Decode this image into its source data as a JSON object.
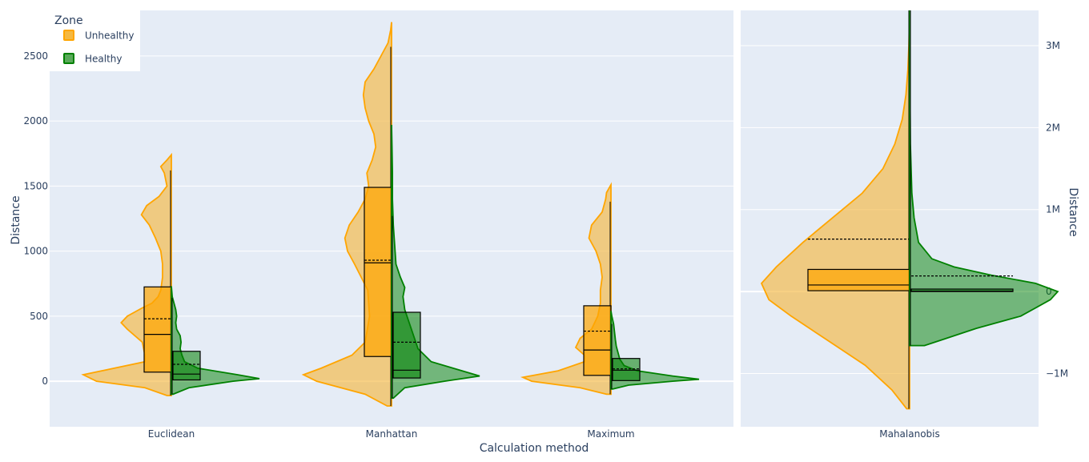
{
  "legend": {
    "title": "Zone",
    "items": [
      {
        "label": "Unhealthy",
        "fill": "#f5b942",
        "stroke": "#ffa500"
      },
      {
        "label": "Healthy",
        "fill": "#5aaa5a",
        "stroke": "#008000"
      }
    ]
  },
  "chart_data": [
    {
      "type": "violin",
      "xlabel": "Calculation method",
      "ylabel": "Distance",
      "ylim": [
        -350,
        2850
      ],
      "yticks": [
        0,
        500,
        1000,
        1500,
        2000,
        2500
      ],
      "ytick_labels": [
        "0",
        "500",
        "1000",
        "1500",
        "2000",
        "2500"
      ],
      "grid": true,
      "categories": [
        "Euclidean",
        "Manhattan",
        "Maximum"
      ],
      "series": [
        {
          "name": "Unhealthy",
          "side": "negative",
          "color": "#ffa500",
          "groups": [
            {
              "category": "Euclidean",
              "min": -110,
              "max": 1740,
              "whisker_high": 1620,
              "q1": 70,
              "median": 360,
              "q3": 725,
              "mean": 480,
              "density": [
                [
                  -110,
                  0.05
                ],
                [
                  -50,
                  0.3
                ],
                [
                  0,
                  0.85
                ],
                [
                  50,
                  1.0
                ],
                [
                  100,
                  0.65
                ],
                [
                  150,
                  0.3
                ],
                [
                  200,
                  0.3
                ],
                [
                  300,
                  0.33
                ],
                [
                  400,
                  0.5
                ],
                [
                  450,
                  0.57
                ],
                [
                  500,
                  0.5
                ],
                [
                  560,
                  0.34
                ],
                [
                  600,
                  0.22
                ],
                [
                  650,
                  0.15
                ],
                [
                  700,
                  0.12
                ],
                [
                  800,
                  0.1
                ],
                [
                  900,
                  0.1
                ],
                [
                  1000,
                  0.12
                ],
                [
                  1100,
                  0.18
                ],
                [
                  1200,
                  0.25
                ],
                [
                  1280,
                  0.34
                ],
                [
                  1350,
                  0.28
                ],
                [
                  1420,
                  0.14
                ],
                [
                  1500,
                  0.05
                ],
                [
                  1600,
                  0.08
                ],
                [
                  1650,
                  0.12
                ],
                [
                  1700,
                  0.05
                ],
                [
                  1740,
                  0
                ]
              ]
            },
            {
              "category": "Manhattan",
              "min": -190,
              "max": 2760,
              "whisker_high": 2570,
              "q1": 190,
              "median": 910,
              "q3": 1490,
              "mean": 930,
              "density": [
                [
                  -190,
                  0.05
                ],
                [
                  -100,
                  0.3
                ],
                [
                  0,
                  0.85
                ],
                [
                  50,
                  1.0
                ],
                [
                  100,
                  0.8
                ],
                [
                  200,
                  0.45
                ],
                [
                  300,
                  0.3
                ],
                [
                  500,
                  0.25
                ],
                [
                  700,
                  0.27
                ],
                [
                  900,
                  0.42
                ],
                [
                  1000,
                  0.5
                ],
                [
                  1100,
                  0.53
                ],
                [
                  1200,
                  0.48
                ],
                [
                  1300,
                  0.38
                ],
                [
                  1400,
                  0.3
                ],
                [
                  1500,
                  0.26
                ],
                [
                  1600,
                  0.28
                ],
                [
                  1700,
                  0.22
                ],
                [
                  1800,
                  0.18
                ],
                [
                  1900,
                  0.2
                ],
                [
                  2000,
                  0.26
                ],
                [
                  2100,
                  0.3
                ],
                [
                  2200,
                  0.32
                ],
                [
                  2300,
                  0.3
                ],
                [
                  2400,
                  0.2
                ],
                [
                  2500,
                  0.12
                ],
                [
                  2600,
                  0.04
                ],
                [
                  2700,
                  0.01
                ],
                [
                  2760,
                  0
                ]
              ]
            },
            {
              "category": "Maximum",
              "min": -100,
              "max": 1510,
              "whisker_high": 1380,
              "q1": 45,
              "median": 240,
              "q3": 580,
              "mean": 385,
              "density": [
                [
                  -100,
                  0.05
                ],
                [
                  -50,
                  0.35
                ],
                [
                  0,
                  0.9
                ],
                [
                  30,
                  1.0
                ],
                [
                  80,
                  0.6
                ],
                [
                  150,
                  0.3
                ],
                [
                  200,
                  0.3
                ],
                [
                  260,
                  0.4
                ],
                [
                  330,
                  0.35
                ],
                [
                  400,
                  0.22
                ],
                [
                  500,
                  0.15
                ],
                [
                  600,
                  0.12
                ],
                [
                  700,
                  0.12
                ],
                [
                  800,
                  0.1
                ],
                [
                  900,
                  0.12
                ],
                [
                  1000,
                  0.17
                ],
                [
                  1100,
                  0.25
                ],
                [
                  1200,
                  0.22
                ],
                [
                  1300,
                  0.1
                ],
                [
                  1400,
                  0.06
                ],
                [
                  1450,
                  0.05
                ],
                [
                  1510,
                  0
                ]
              ]
            }
          ]
        },
        {
          "name": "Healthy",
          "side": "positive",
          "color": "#008000",
          "groups": [
            {
              "category": "Euclidean",
              "min": -100,
              "max": 730,
              "whisker_high": 640,
              "q1": 10,
              "median": 55,
              "q3": 230,
              "mean": 130,
              "density": [
                [
                  -100,
                  0.02
                ],
                [
                  -50,
                  0.2
                ],
                [
                  0,
                  0.7
                ],
                [
                  20,
                  1.0
                ],
                [
                  50,
                  0.75
                ],
                [
                  100,
                  0.3
                ],
                [
                  150,
                  0.15
                ],
                [
                  200,
                  0.12
                ],
                [
                  250,
                  0.1
                ],
                [
                  300,
                  0.11
                ],
                [
                  350,
                  0.1
                ],
                [
                  400,
                  0.06
                ],
                [
                  450,
                  0.05
                ],
                [
                  500,
                  0.06
                ],
                [
                  550,
                  0.05
                ],
                [
                  600,
                  0.03
                ],
                [
                  650,
                  0.01
                ],
                [
                  730,
                  0
                ]
              ]
            },
            {
              "category": "Manhattan",
              "min": -130,
              "max": 1970,
              "whisker_high": 1270,
              "q1": 25,
              "median": 85,
              "q3": 530,
              "mean": 300,
              "density": [
                [
                  -130,
                  0.02
                ],
                [
                  -50,
                  0.15
                ],
                [
                  0,
                  0.6
                ],
                [
                  40,
                  1.0
                ],
                [
                  80,
                  0.8
                ],
                [
                  150,
                  0.45
                ],
                [
                  250,
                  0.3
                ],
                [
                  350,
                  0.25
                ],
                [
                  450,
                  0.2
                ],
                [
                  550,
                  0.15
                ],
                [
                  650,
                  0.13
                ],
                [
                  720,
                  0.15
                ],
                [
                  800,
                  0.1
                ],
                [
                  900,
                  0.05
                ],
                [
                  1000,
                  0.04
                ],
                [
                  1100,
                  0.03
                ],
                [
                  1200,
                  0.02
                ],
                [
                  1400,
                  0.01
                ],
                [
                  1600,
                  0.01
                ],
                [
                  1800,
                  0.005
                ],
                [
                  1970,
                  0
                ]
              ]
            },
            {
              "category": "Maximum",
              "min": -60,
              "max": 540,
              "whisker_high": 440,
              "q1": 5,
              "median": 85,
              "q3": 175,
              "mean": 95,
              "density": [
                [
                  -60,
                  0.02
                ],
                [
                  -30,
                  0.2
                ],
                [
                  0,
                  0.7
                ],
                [
                  15,
                  1.0
                ],
                [
                  40,
                  0.7
                ],
                [
                  80,
                  0.3
                ],
                [
                  120,
                  0.15
                ],
                [
                  170,
                  0.1
                ],
                [
                  220,
                  0.08
                ],
                [
                  270,
                  0.06
                ],
                [
                  320,
                  0.05
                ],
                [
                  380,
                  0.04
                ],
                [
                  440,
                  0.03
                ],
                [
                  500,
                  0.01
                ],
                [
                  540,
                  0
                ]
              ]
            }
          ]
        }
      ]
    },
    {
      "type": "violin",
      "xlabel": "",
      "ylabel": "Distance",
      "ylim": [
        -1650000,
        3430000
      ],
      "yticks": [
        -1000000,
        0,
        1000000,
        2000000,
        3000000
      ],
      "ytick_labels": [
        "−1M",
        "0",
        "1M",
        "2M",
        "3M"
      ],
      "grid": true,
      "categories": [
        "Mahalanobis"
      ],
      "series": [
        {
          "name": "Unhealthy",
          "side": "negative",
          "color": "#ffa500",
          "groups": [
            {
              "category": "Mahalanobis",
              "min": -1430000,
              "max": 3430000,
              "whisker_high": 3430000,
              "q1": 10000,
              "median": 80000,
              "q3": 270000,
              "mean": 640000,
              "density": [
                [
                  -1430000,
                  0.02
                ],
                [
                  -1200000,
                  0.12
                ],
                [
                  -900000,
                  0.3
                ],
                [
                  -600000,
                  0.55
                ],
                [
                  -300000,
                  0.8
                ],
                [
                  -100000,
                  0.95
                ],
                [
                  100000,
                  1.0
                ],
                [
                  300000,
                  0.9
                ],
                [
                  600000,
                  0.72
                ],
                [
                  900000,
                  0.52
                ],
                [
                  1200000,
                  0.32
                ],
                [
                  1500000,
                  0.18
                ],
                [
                  1800000,
                  0.1
                ],
                [
                  2100000,
                  0.05
                ],
                [
                  2400000,
                  0.025
                ],
                [
                  2700000,
                  0.012
                ],
                [
                  3000000,
                  0.005
                ],
                [
                  3430000,
                  0
                ]
              ]
            }
          ]
        },
        {
          "name": "Healthy",
          "side": "positive",
          "color": "#008000",
          "groups": [
            {
              "category": "Mahalanobis",
              "min": -660000,
              "max": 3430000,
              "whisker_high": 3430000,
              "q1": 0,
              "median": 5000,
              "q3": 30000,
              "mean": 190000,
              "density": [
                [
                  -660000,
                  0.1
                ],
                [
                  -600000,
                  0.2
                ],
                [
                  -450000,
                  0.45
                ],
                [
                  -300000,
                  0.75
                ],
                [
                  -100000,
                  0.95
                ],
                [
                  0,
                  1.0
                ],
                [
                  100000,
                  0.85
                ],
                [
                  200000,
                  0.55
                ],
                [
                  300000,
                  0.3
                ],
                [
                  400000,
                  0.15
                ],
                [
                  600000,
                  0.06
                ],
                [
                  900000,
                  0.03
                ],
                [
                  1200000,
                  0.015
                ],
                [
                  1800000,
                  0.005
                ],
                [
                  2500000,
                  0.002
                ],
                [
                  3430000,
                  0
                ]
              ]
            }
          ]
        }
      ]
    }
  ]
}
